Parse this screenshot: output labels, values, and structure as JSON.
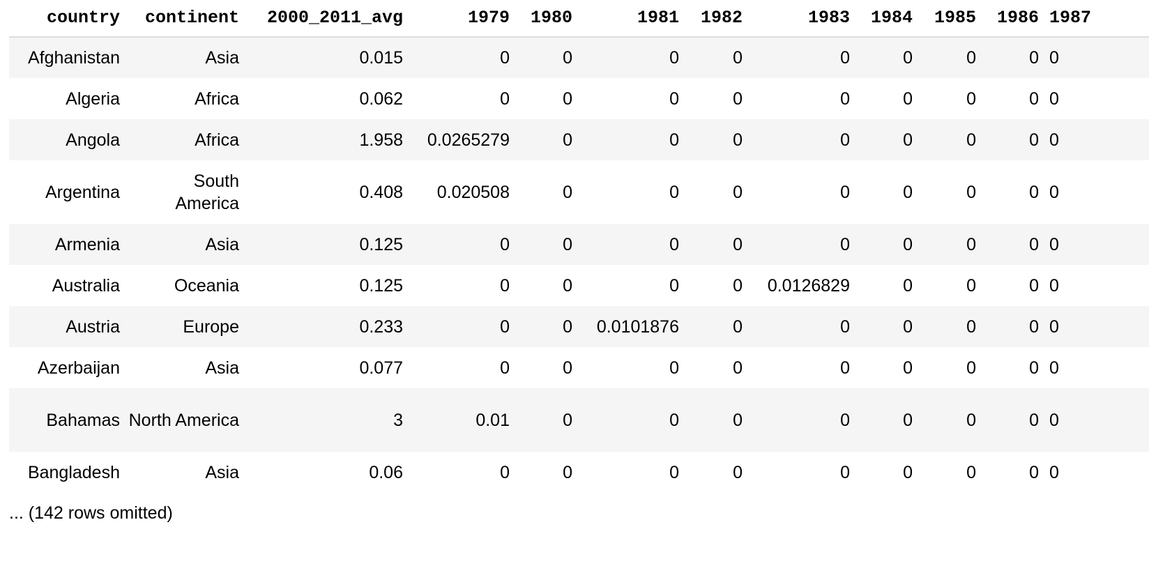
{
  "table": {
    "columns": [
      "country",
      "continent",
      "2000_2011_avg",
      "1979",
      "1980",
      "1981",
      "1982",
      "1983",
      "1984",
      "1985",
      "1986",
      "1987"
    ],
    "rows": [
      [
        "Afghanistan",
        "Asia",
        "0.015",
        "0",
        "0",
        "0",
        "0",
        "0",
        "0",
        "0",
        "0",
        "0"
      ],
      [
        "Algeria",
        "Africa",
        "0.062",
        "0",
        "0",
        "0",
        "0",
        "0",
        "0",
        "0",
        "0",
        "0"
      ],
      [
        "Angola",
        "Africa",
        "1.958",
        "0.0265279",
        "0",
        "0",
        "0",
        "0",
        "0",
        "0",
        "0",
        "0"
      ],
      [
        "Argentina",
        "South America",
        "0.408",
        "0.020508",
        "0",
        "0",
        "0",
        "0",
        "0",
        "0",
        "0",
        "0"
      ],
      [
        "Armenia",
        "Asia",
        "0.125",
        "0",
        "0",
        "0",
        "0",
        "0",
        "0",
        "0",
        "0",
        "0"
      ],
      [
        "Australia",
        "Oceania",
        "0.125",
        "0",
        "0",
        "0",
        "0",
        "0.0126829",
        "0",
        "0",
        "0",
        "0"
      ],
      [
        "Austria",
        "Europe",
        "0.233",
        "0",
        "0",
        "0.0101876",
        "0",
        "0",
        "0",
        "0",
        "0",
        "0"
      ],
      [
        "Azerbaijan",
        "Asia",
        "0.077",
        "0",
        "0",
        "0",
        "0",
        "0",
        "0",
        "0",
        "0",
        "0"
      ],
      [
        "Bahamas",
        "North America",
        "3",
        "0.01",
        "0",
        "0",
        "0",
        "0",
        "0",
        "0",
        "0",
        "0"
      ],
      [
        "Bangladesh",
        "Asia",
        "0.06",
        "0",
        "0",
        "0",
        "0",
        "0",
        "0",
        "0",
        "0",
        "0"
      ]
    ],
    "omitted_note": "... (142 rows omitted)"
  }
}
